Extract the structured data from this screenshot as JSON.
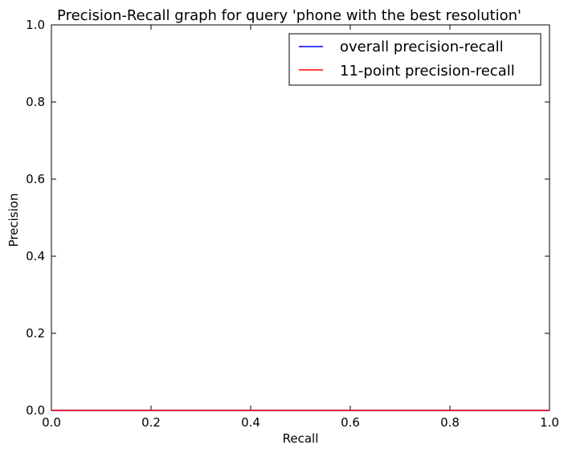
{
  "chart_data": {
    "type": "line",
    "title": "Precision-Recall graph for query 'phone with the best resolution'",
    "xlabel": "Recall",
    "ylabel": "Precision",
    "xlim": [
      0.0,
      1.0
    ],
    "ylim": [
      0.0,
      1.0
    ],
    "xticks": [
      "0.0",
      "0.2",
      "0.4",
      "0.6",
      "0.8",
      "1.0"
    ],
    "yticks": [
      "0.0",
      "0.2",
      "0.4",
      "0.6",
      "0.8",
      "1.0"
    ],
    "grid": false,
    "legend_position": "top-right",
    "series": [
      {
        "name": "overall precision-recall",
        "color": "#0000ff",
        "x": [
          0.0,
          1.0
        ],
        "y": [
          0.0,
          0.0
        ]
      },
      {
        "name": "11-point precision-recall",
        "color": "#ff0000",
        "x": [
          0.0,
          0.1,
          0.2,
          0.3,
          0.4,
          0.5,
          0.6,
          0.7,
          0.8,
          0.9,
          1.0
        ],
        "y": [
          0.0,
          0.0,
          0.0,
          0.0,
          0.0,
          0.0,
          0.0,
          0.0,
          0.0,
          0.0,
          0.0
        ]
      }
    ]
  }
}
